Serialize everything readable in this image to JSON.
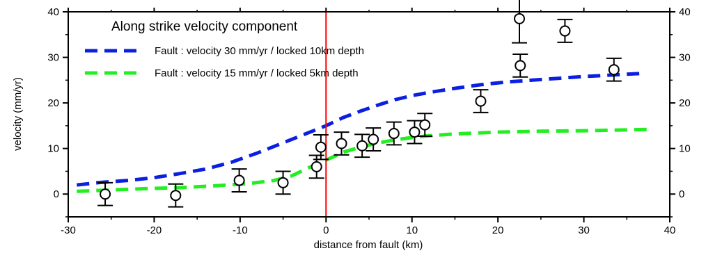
{
  "chart_data": {
    "type": "line",
    "title": "",
    "xlabel": "distance from fault (km)",
    "ylabel": "velocity (mm/yr)",
    "xlim": [
      -30,
      40
    ],
    "ylim": [
      -5,
      40
    ],
    "x_ticks": [
      -30,
      -20,
      -10,
      0,
      10,
      20,
      30,
      40
    ],
    "y_ticks": [
      0,
      10,
      20,
      30,
      40
    ],
    "grid": false,
    "legend_placement": "top-left",
    "legend_title": "Along strike velocity component",
    "fault_line": {
      "x": 0,
      "color": "#ff0000"
    },
    "series": [
      {
        "name": "Fault : velocity 30 mm/yr / locked 10km depth",
        "style": "dashed",
        "color": "#0a1fe0",
        "x": [
          -29,
          -26,
          -23,
          -20,
          -17,
          -14,
          -11,
          -8,
          -6,
          -4,
          -2,
          0,
          2,
          4,
          6,
          8,
          10,
          12,
          15,
          18,
          21,
          24,
          27,
          30,
          33,
          37
        ],
        "y": [
          2.0,
          2.6,
          3.0,
          3.6,
          4.5,
          5.5,
          7.0,
          9.0,
          10.5,
          12.0,
          13.5,
          15.0,
          16.8,
          18.2,
          19.5,
          20.7,
          21.6,
          22.3,
          23.2,
          24.0,
          24.6,
          25.0,
          25.4,
          25.8,
          26.1,
          26.5
        ]
      },
      {
        "name": "Fault : velocity 15 mm/yr / locked 5km depth",
        "style": "dashed",
        "color": "#22ee22",
        "x": [
          -29,
          -25,
          -21,
          -17,
          -13,
          -9,
          -6,
          -4,
          -2,
          -1,
          0,
          1,
          2,
          4,
          6,
          8,
          10,
          12,
          15,
          20,
          25,
          30,
          38
        ],
        "y": [
          0.6,
          0.9,
          1.2,
          1.4,
          1.8,
          2.3,
          3.0,
          4.0,
          5.8,
          6.6,
          7.5,
          8.3,
          9.2,
          10.3,
          11.2,
          11.9,
          12.4,
          12.8,
          13.2,
          13.6,
          13.8,
          13.9,
          14.2
        ]
      }
    ],
    "observations": [
      {
        "x": -25.7,
        "y": 0.0,
        "error": 2.5
      },
      {
        "x": -17.5,
        "y": -0.3,
        "error": 2.5
      },
      {
        "x": -10.1,
        "y": 3.0,
        "error": 2.5
      },
      {
        "x": -5.0,
        "y": 2.5,
        "error": 2.5
      },
      {
        "x": -1.1,
        "y": 6.0,
        "error": 2.5
      },
      {
        "x": -0.6,
        "y": 10.3,
        "error": 2.7
      },
      {
        "x": 1.8,
        "y": 11.1,
        "error": 2.5
      },
      {
        "x": 4.2,
        "y": 10.6,
        "error": 2.5
      },
      {
        "x": 5.5,
        "y": 12.0,
        "error": 2.5
      },
      {
        "x": 7.9,
        "y": 13.3,
        "error": 2.5
      },
      {
        "x": 10.3,
        "y": 13.6,
        "error": 2.5
      },
      {
        "x": 11.5,
        "y": 15.2,
        "error": 2.5
      },
      {
        "x": 18.0,
        "y": 20.4,
        "error": 2.5
      },
      {
        "x": 22.5,
        "y": 38.5,
        "error": 5.3
      },
      {
        "x": 22.6,
        "y": 28.2,
        "error": 2.5
      },
      {
        "x": 27.8,
        "y": 35.8,
        "error": 2.5
      },
      {
        "x": 33.5,
        "y": 27.3,
        "error": 2.5
      }
    ]
  }
}
